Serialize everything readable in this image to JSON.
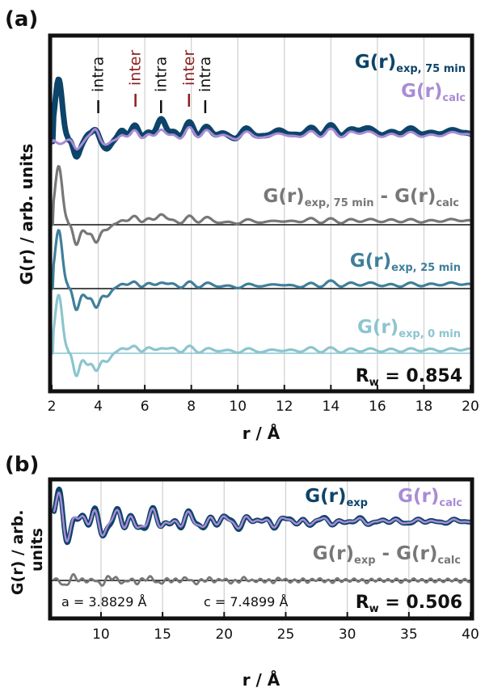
{
  "colors": {
    "exp75": "#0d4469",
    "calc": "#a98bd6",
    "diff": "#777777",
    "exp25": "#3f7f9a",
    "exp0": "#8cc5cf",
    "inter_label": "#8b1f1f",
    "intra_label": "#111111",
    "grid": "#cfcfcf"
  },
  "panel_a": {
    "letter": "(a)",
    "ylabel": "G(r) / arb. units",
    "xlabel": "r / Å",
    "annotations": [
      "intra",
      "inter",
      "intra",
      "inter",
      "intra"
    ],
    "legend": {
      "exp75_main": "G(r)",
      "exp75_sub": "exp, 75 min",
      "calc_main": "G(r)",
      "calc_sub": "calc",
      "diff_main1": "G(r)",
      "diff_sub1": "exp, 75 min",
      "diff_mid": " - ",
      "diff_main2": "G(r)",
      "diff_sub2": "calc",
      "exp25_main": "G(r)",
      "exp25_sub": "exp, 25 min",
      "exp0_main": "G(r)",
      "exp0_sub": "exp, 0 min"
    },
    "rw_label": "R",
    "rw_sub": "w",
    "rw_value": " = 0.854"
  },
  "panel_b": {
    "letter": "(b)",
    "ylabel_line1": "G(r) / arb.",
    "ylabel_line2": "units",
    "xlabel": "r / Å",
    "legend": {
      "exp_main": "G(r)",
      "exp_sub": "exp",
      "calc_main": "G(r)",
      "calc_sub": "calc",
      "diff_main1": "G(r)",
      "diff_sub1": "exp",
      "diff_mid": " - ",
      "diff_main2": "G(r)",
      "diff_sub2": "calc"
    },
    "a_param": "a = 3.8829 Å",
    "c_param": "c = 7.4899 Å",
    "rw_label": "R",
    "rw_sub": "w",
    "rw_value": " = 0.506"
  },
  "chart_data": [
    {
      "type": "line",
      "panel": "a",
      "xlabel": "r / Å",
      "ylabel": "G(r) / arb. units",
      "xlim": [
        2,
        20
      ],
      "x_ticks": [
        2,
        4,
        6,
        8,
        10,
        12,
        14,
        16,
        18,
        20
      ],
      "grid": "vertical",
      "annotations": [
        {
          "text": "intra",
          "x": 4.0
        },
        {
          "text": "inter",
          "x": 5.6
        },
        {
          "text": "intra",
          "x": 6.7
        },
        {
          "text": "inter",
          "x": 7.9
        },
        {
          "text": "intra",
          "x": 8.6
        }
      ],
      "peaks_x": [
        3.05,
        3.55,
        3.9,
        4.4,
        5.0,
        5.6,
        6.1,
        6.7,
        7.3,
        7.9,
        8.6,
        9.3,
        10.3,
        11.0,
        11.8,
        12.6,
        13.2,
        14.0,
        14.8,
        15.4,
        16.0,
        16.7,
        17.4,
        18.0,
        18.7,
        19.4,
        19.9
      ],
      "series": [
        {
          "name": "G(r)exp, 75 min",
          "style": "markers",
          "peak_amplitudes": [
            -1.0,
            0.3,
            0.8,
            -0.6,
            0.9,
            1.1,
            0.5,
            1.7,
            0.6,
            1.2,
            1.0,
            0.7,
            0.9,
            0.5,
            0.9,
            0.5,
            0.8,
            1.0,
            0.6,
            0.8,
            0.5,
            0.5,
            0.7,
            0.4,
            0.5,
            0.6,
            0.3
          ]
        },
        {
          "name": "G(r)calc",
          "style": "line",
          "peak_amplitudes": [
            -0.5,
            0.2,
            0.9,
            -0.3,
            0.6,
            0.8,
            0.4,
            1.0,
            0.4,
            0.9,
            0.8,
            0.6,
            0.7,
            0.4,
            0.7,
            0.4,
            0.6,
            0.8,
            0.5,
            0.6,
            0.4,
            0.4,
            0.5,
            0.3,
            0.4,
            0.5,
            0.3
          ]
        },
        {
          "name": "G(r)exp, 75 min - G(r)calc",
          "style": "line",
          "peak_amplitudes": [
            -1.6,
            -0.8,
            -1.4,
            -0.5,
            0.5,
            0.7,
            0.4,
            1.0,
            0.3,
            0.6,
            0.6,
            0.3,
            0.4,
            0.3,
            0.4,
            0.3,
            0.4,
            0.4,
            0.3,
            0.3,
            0.3,
            0.3,
            0.3,
            0.2,
            0.3,
            0.3,
            0.2
          ]
        },
        {
          "name": "G(r)exp, 25 min",
          "style": "line",
          "peak_amplitudes": [
            -1.6,
            -0.8,
            -1.4,
            -0.7,
            0.5,
            0.5,
            0.3,
            0.6,
            0.3,
            0.4,
            0.4,
            0.3,
            0.3,
            0.3,
            0.4,
            0.2,
            0.3,
            0.5,
            0.3,
            0.3,
            0.3,
            0.2,
            0.3,
            0.2,
            0.3,
            0.3,
            0.2
          ]
        },
        {
          "name": "G(r)exp, 0 min",
          "style": "line",
          "peak_amplitudes": [
            -1.6,
            -0.9,
            -1.2,
            -0.7,
            0.5,
            0.5,
            0.3,
            0.5,
            0.3,
            0.4,
            0.3,
            0.3,
            0.3,
            0.2,
            0.3,
            0.2,
            0.3,
            0.3,
            0.2,
            0.2,
            0.2,
            0.2,
            0.2,
            0.2,
            0.2,
            0.2,
            0.2
          ]
        }
      ]
    },
    {
      "type": "line",
      "panel": "b",
      "xlabel": "r / Å",
      "ylabel": "G(r) / arb. units",
      "xlim": [
        6,
        40
      ],
      "x_ticks": [
        10,
        15,
        20,
        25,
        30,
        35,
        40
      ],
      "grid": "vertical",
      "series": [
        {
          "name": "G(r)exp",
          "style": "thick line"
        },
        {
          "name": "G(r)calc",
          "style": "line"
        },
        {
          "name": "G(r)exp - G(r)calc",
          "style": "line"
        }
      ],
      "a_angstrom": 3.8829,
      "c_angstrom": 7.4899,
      "Rw": 0.506
    }
  ]
}
